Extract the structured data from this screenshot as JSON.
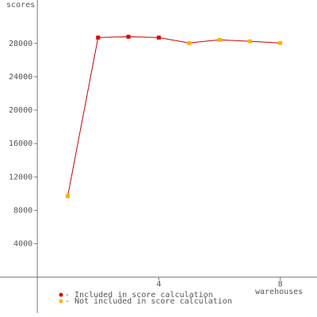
{
  "chart_data": {
    "type": "line",
    "ylabel": "scores",
    "xlabel": "warehouses",
    "x": [
      1,
      2,
      3,
      4,
      5,
      6,
      7,
      8
    ],
    "values": [
      9700,
      28700,
      28800,
      28700,
      28050,
      28430,
      28250,
      28050
    ],
    "included": [
      false,
      true,
      true,
      true,
      false,
      false,
      false,
      false
    ],
    "line_color": "#cc0000",
    "legend": [
      {
        "label": "- Included in score calculation",
        "color": "#dd0000"
      },
      {
        "label": "- Not included in score calculation",
        "color": "#ffb300"
      }
    ],
    "xlim": [
      -1.23,
      9.21
    ],
    "xticks": [
      4,
      8
    ],
    "ylim": [
      -4300,
      33200
    ],
    "yticks": [
      4000,
      8000,
      12000,
      16000,
      20000,
      24000,
      28000
    ]
  }
}
